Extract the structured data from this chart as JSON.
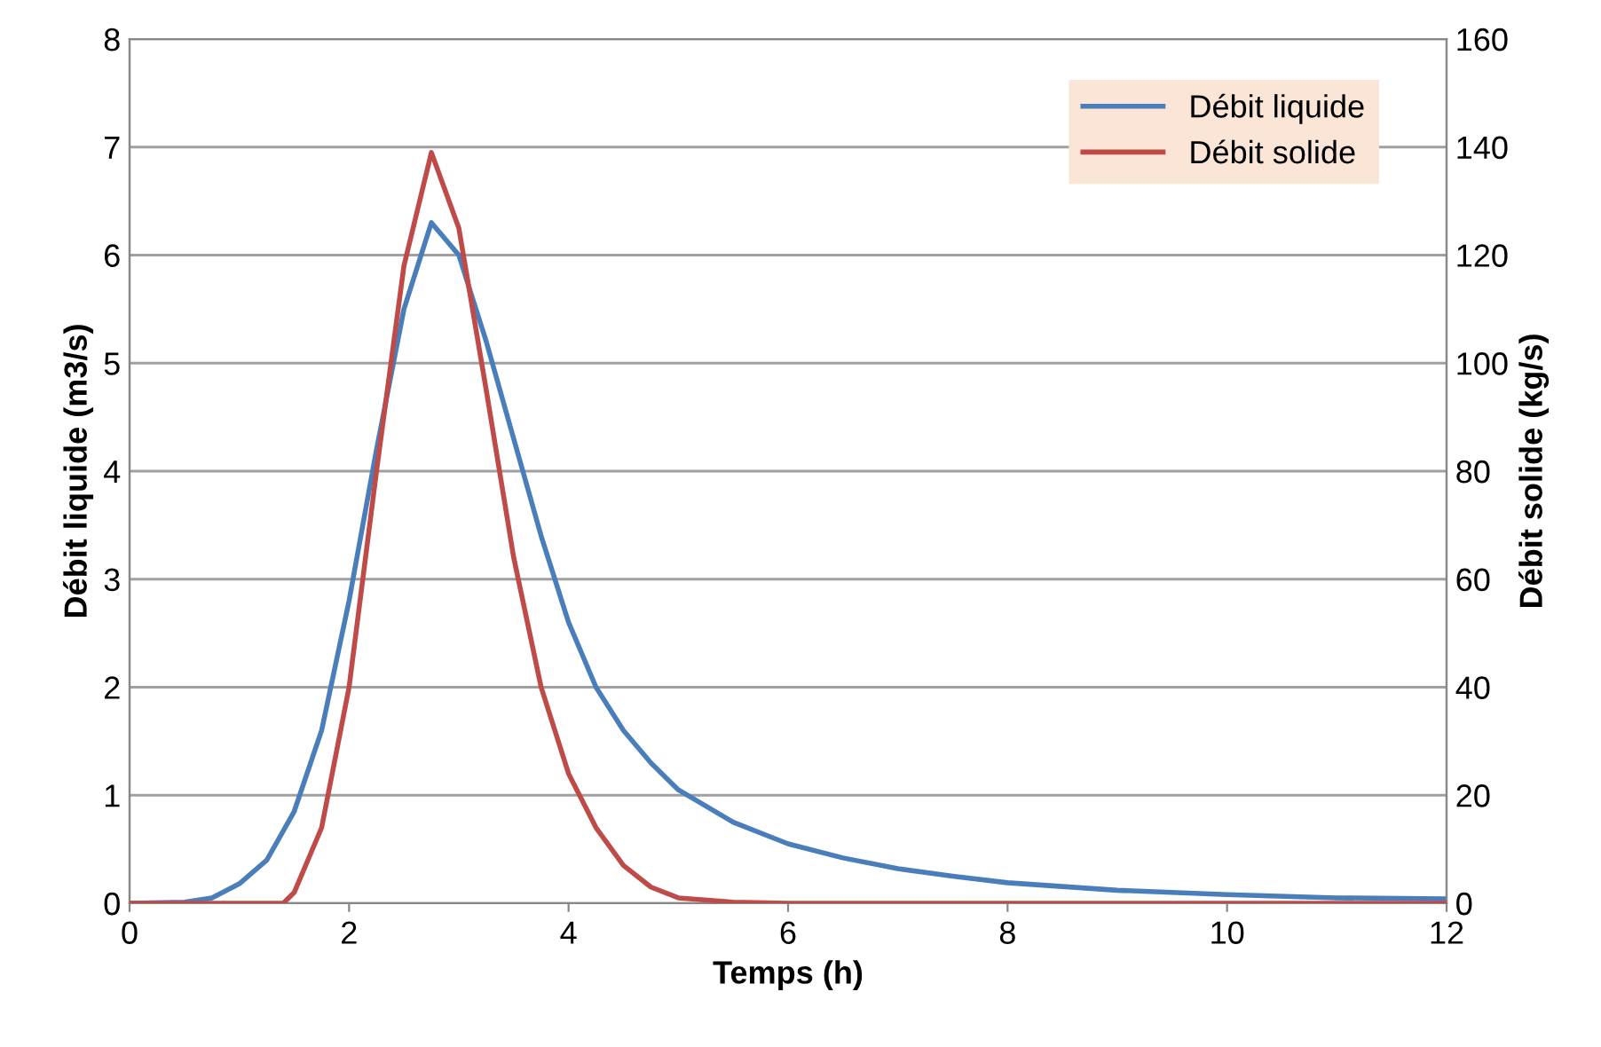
{
  "chart_data": {
    "type": "line",
    "xlabel": "Temps (h)",
    "ylabel": "Débit liquide (m3/s)",
    "y2label": "Débit solide (kg/s)",
    "xlim": [
      0,
      12
    ],
    "xticks": [
      0,
      2,
      4,
      6,
      8,
      10,
      12
    ],
    "ylim": [
      0,
      8
    ],
    "yticks": [
      0,
      1,
      2,
      3,
      4,
      5,
      6,
      7,
      8
    ],
    "y2lim": [
      0,
      160
    ],
    "y2ticks": [
      0,
      20,
      40,
      60,
      80,
      100,
      120,
      140,
      160
    ],
    "grid": "y",
    "legend": "top right",
    "marker": "none",
    "line_style": "solid",
    "series": [
      {
        "name": "Débit liquide",
        "color": "#4a7ebb",
        "x": [
          0,
          0.5,
          0.75,
          1.0,
          1.25,
          1.5,
          1.75,
          2.0,
          2.25,
          2.5,
          2.75,
          3.0,
          3.25,
          3.5,
          3.75,
          4.0,
          4.25,
          4.5,
          4.75,
          5.0,
          5.5,
          6.0,
          6.5,
          7,
          7.5,
          8,
          9,
          10,
          11,
          12
        ],
        "values": [
          0,
          0.01,
          0.05,
          0.18,
          0.4,
          0.85,
          1.6,
          2.8,
          4.2,
          5.5,
          6.3,
          6.0,
          5.2,
          4.3,
          3.4,
          2.6,
          2.0,
          1.6,
          1.3,
          1.05,
          0.75,
          0.55,
          0.42,
          0.32,
          0.25,
          0.19,
          0.12,
          0.08,
          0.05,
          0.04
        ]
      },
      {
        "name": "Débit solide",
        "color": "#be4b48",
        "axis": "y2",
        "x": [
          0,
          1.4,
          1.5,
          1.75,
          2.0,
          2.25,
          2.5,
          2.75,
          3.0,
          3.25,
          3.5,
          3.75,
          4.0,
          4.25,
          4.5,
          4.75,
          5.0,
          5.5,
          6,
          12
        ],
        "values": [
          0,
          0,
          2,
          14,
          40,
          80,
          118,
          139,
          125,
          95,
          64,
          40,
          24,
          14,
          7,
          3,
          1,
          0.2,
          0,
          0
        ]
      }
    ]
  }
}
